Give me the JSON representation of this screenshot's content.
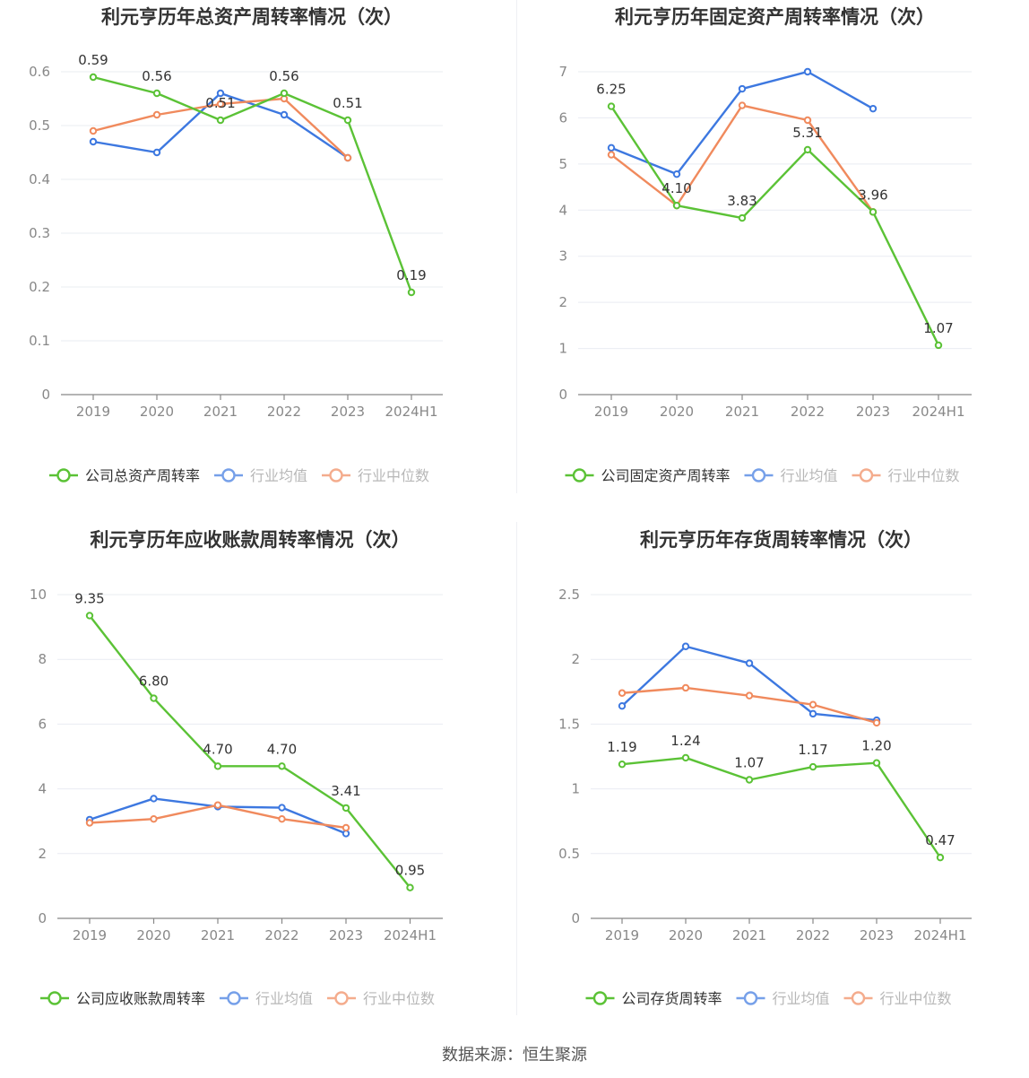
{
  "footer": {
    "source": "数据来源：恒生聚源"
  },
  "charts": [
    {
      "id": "total-asset",
      "type": "line",
      "title": "利元亨历年总资产周转率情况（次）",
      "categories": [
        "2019",
        "2020",
        "2021",
        "2022",
        "2023",
        "2024H1"
      ],
      "ylim": [
        0,
        0.6
      ],
      "yticks": [
        0,
        0.1,
        0.2,
        0.3,
        0.4,
        0.5,
        0.6
      ],
      "ytick_labels": [
        "0",
        "0.1",
        "0.2",
        "0.3",
        "0.4",
        "0.5",
        "0.6"
      ],
      "grid": true,
      "legend_position": "bottom",
      "series": [
        {
          "name": "公司总资产周转率",
          "color": "#5bc236",
          "values": [
            0.59,
            0.56,
            0.51,
            0.56,
            0.51,
            0.19
          ],
          "labels": [
            "0.59",
            "0.56",
            "0.51",
            "0.56",
            "0.51",
            "0.19"
          ]
        },
        {
          "name": "行业均值",
          "color": "#3d78e0",
          "values": [
            0.47,
            0.45,
            0.56,
            0.52,
            0.44,
            null
          ]
        },
        {
          "name": "行业中位数",
          "color": "#f08a5d",
          "values": [
            0.49,
            0.52,
            0.54,
            0.55,
            0.44,
            null
          ]
        }
      ]
    },
    {
      "id": "fixed-asset",
      "type": "line",
      "title": "利元亨历年固定资产周转率情况（次）",
      "categories": [
        "2019",
        "2020",
        "2021",
        "2022",
        "2023",
        "2024H1"
      ],
      "ylim": [
        0,
        7
      ],
      "yticks": [
        0,
        1,
        2,
        3,
        4,
        5,
        6,
        7
      ],
      "ytick_labels": [
        "0",
        "1",
        "2",
        "3",
        "4",
        "5",
        "6",
        "7"
      ],
      "grid": true,
      "legend_position": "bottom",
      "series": [
        {
          "name": "公司固定资产周转率",
          "color": "#5bc236",
          "values": [
            6.25,
            4.1,
            3.83,
            5.31,
            3.96,
            1.07
          ],
          "labels": [
            "6.25",
            "4.10",
            "3.83",
            "5.31",
            "3.96",
            "1.07"
          ]
        },
        {
          "name": "行业均值",
          "color": "#3d78e0",
          "values": [
            5.35,
            4.78,
            6.63,
            7.0,
            6.2,
            null
          ]
        },
        {
          "name": "行业中位数",
          "color": "#f08a5d",
          "values": [
            5.2,
            4.1,
            6.27,
            5.95,
            3.96,
            null
          ]
        }
      ]
    },
    {
      "id": "receivable",
      "type": "line",
      "title": "利元亨历年应收账款周转率情况（次）",
      "categories": [
        "2019",
        "2020",
        "2021",
        "2022",
        "2023",
        "2024H1"
      ],
      "ylim": [
        0,
        10
      ],
      "yticks": [
        0,
        2,
        4,
        6,
        8,
        10
      ],
      "ytick_labels": [
        "0",
        "2",
        "4",
        "6",
        "8",
        "10"
      ],
      "grid": true,
      "legend_position": "bottom",
      "series": [
        {
          "name": "公司应收账款周转率",
          "color": "#5bc236",
          "values": [
            9.35,
            6.8,
            4.7,
            4.7,
            3.41,
            0.95
          ],
          "labels": [
            "9.35",
            "6.80",
            "4.70",
            "4.70",
            "3.41",
            "0.95"
          ]
        },
        {
          "name": "行业均值",
          "color": "#3d78e0",
          "values": [
            3.05,
            3.7,
            3.45,
            3.42,
            2.62,
            null
          ]
        },
        {
          "name": "行业中位数",
          "color": "#f08a5d",
          "values": [
            2.95,
            3.07,
            3.5,
            3.07,
            2.8,
            null
          ]
        }
      ]
    },
    {
      "id": "inventory",
      "type": "line",
      "title": "利元亨历年存货周转率情况（次）",
      "categories": [
        "2019",
        "2020",
        "2021",
        "2022",
        "2023",
        "2024H1"
      ],
      "ylim": [
        0,
        2.5
      ],
      "yticks": [
        0,
        0.5,
        1,
        1.5,
        2,
        2.5
      ],
      "ytick_labels": [
        "0",
        "0.5",
        "1",
        "1.5",
        "2",
        "2.5"
      ],
      "grid": true,
      "legend_position": "bottom",
      "series": [
        {
          "name": "公司存货周转率",
          "color": "#5bc236",
          "values": [
            1.19,
            1.24,
            1.07,
            1.17,
            1.2,
            0.47
          ],
          "labels": [
            "1.19",
            "1.24",
            "1.07",
            "1.17",
            "1.20",
            "0.47"
          ]
        },
        {
          "name": "行业均值",
          "color": "#3d78e0",
          "values": [
            1.64,
            2.1,
            1.97,
            1.58,
            1.53,
            null
          ]
        },
        {
          "name": "行业中位数",
          "color": "#f08a5d",
          "values": [
            1.74,
            1.78,
            1.72,
            1.65,
            1.51,
            null
          ]
        }
      ]
    }
  ]
}
